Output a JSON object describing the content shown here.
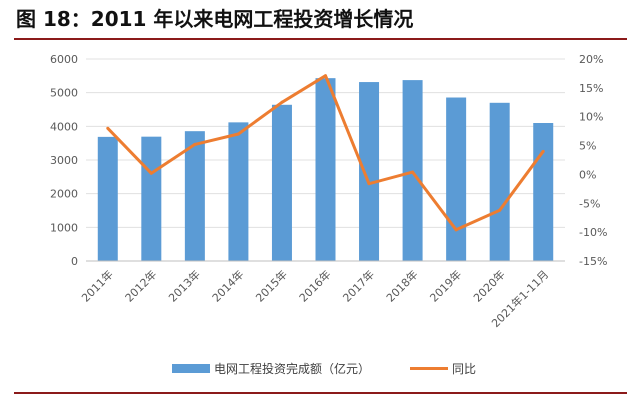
{
  "title": "图 18：2011 年以来电网工程投资增长情况",
  "colors": {
    "bar": "#5b9bd5",
    "line": "#ed7d31",
    "rule": "#8b1a1a",
    "axis": "#bfbfbf",
    "text": "#595959"
  },
  "chart_data": {
    "type": "bar",
    "categories": [
      "2011年",
      "2012年",
      "2013年",
      "2014年",
      "2015年",
      "2016年",
      "2017年",
      "2018年",
      "2019年",
      "2020年",
      "2021年1-11月"
    ],
    "series": [
      {
        "name": "电网工程投资完成额（亿元）",
        "type": "bar",
        "axis": "left",
        "values": [
          3687,
          3693,
          3856,
          4118,
          4640,
          5431,
          5315,
          5373,
          4856,
          4699,
          4099
        ]
      },
      {
        "name": "同比",
        "type": "line",
        "axis": "right",
        "unit": "%",
        "values": [
          8,
          0.2,
          5.2,
          7,
          12.5,
          17.1,
          -1.6,
          0.4,
          -9.6,
          -6.2,
          4
        ]
      }
    ],
    "y_left": {
      "ylim": [
        0,
        6000
      ],
      "ticks": [
        "0",
        "1000",
        "2000",
        "3000",
        "4000",
        "5000",
        "6000"
      ]
    },
    "y_right": {
      "ylim": [
        -15,
        20
      ],
      "ticks": [
        "-15%",
        "-10%",
        "-5%",
        "0%",
        "5%",
        "10%",
        "15%",
        "20%"
      ]
    },
    "legend_position": "bottom",
    "grid": true
  }
}
